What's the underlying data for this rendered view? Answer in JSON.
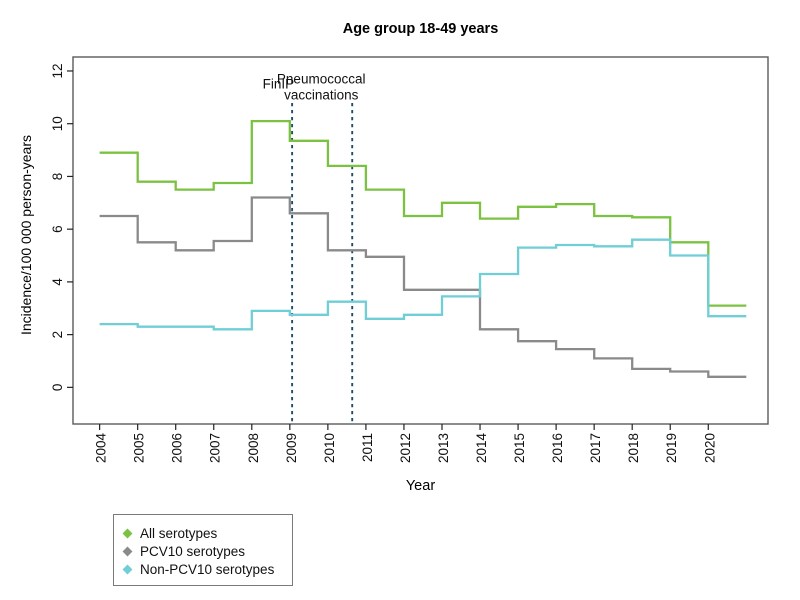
{
  "page": {
    "background": "#ffffff"
  },
  "chart_data": {
    "type": "line",
    "subtype": "step-post",
    "title": "Age group 18-49 years",
    "xlabel": "Year",
    "ylabel": "Incidence/100 000 person-years",
    "x": [
      2004,
      2005,
      2006,
      2007,
      2008,
      2009,
      2010,
      2011,
      2012,
      2013,
      2014,
      2015,
      2016,
      2017,
      2018,
      2019,
      2020
    ],
    "x_end": 2021,
    "y_ticks": [
      0,
      2,
      4,
      6,
      8,
      10,
      12
    ],
    "ylim": [
      0,
      12
    ],
    "grid": false,
    "legend_position": "bottom-left",
    "series": [
      {
        "name": "All serotypes",
        "color": "#7cc242",
        "values": [
          8.9,
          7.8,
          7.5,
          7.75,
          10.1,
          9.35,
          8.4,
          7.5,
          6.5,
          7.0,
          6.4,
          6.85,
          6.95,
          6.5,
          6.45,
          5.5,
          3.1
        ]
      },
      {
        "name": "PCV10 serotypes",
        "color": "#8a8a8a",
        "values": [
          6.5,
          5.5,
          5.2,
          5.55,
          7.2,
          6.6,
          5.2,
          4.95,
          3.7,
          3.7,
          2.2,
          1.75,
          1.45,
          1.1,
          0.7,
          0.6,
          0.4
        ]
      },
      {
        "name": "Non-PCV10 serotypes",
        "color": "#6fced6",
        "values": [
          2.4,
          2.3,
          2.3,
          2.2,
          2.9,
          2.75,
          3.25,
          2.6,
          2.75,
          3.45,
          4.3,
          5.3,
          5.4,
          5.35,
          5.6,
          5.0,
          2.7
        ]
      }
    ],
    "annotations": [
      {
        "lines": [
          "FinIP"
        ],
        "x": 2009.06
      },
      {
        "lines": [
          "Pneumococcal",
          "vaccinations"
        ],
        "x": 2010.64
      }
    ],
    "annotation_text_color": "#2d6d8c",
    "annotation_line_color": "#1d4f66",
    "axis_color": "#5a5a5a",
    "tick_color": "#222222"
  }
}
